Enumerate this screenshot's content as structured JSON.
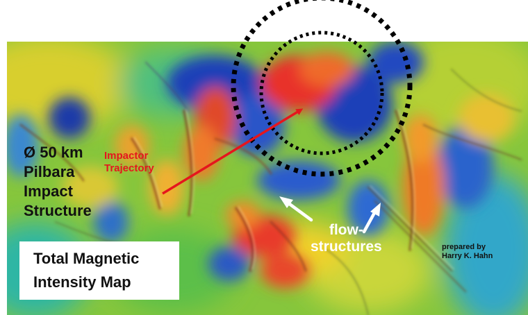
{
  "map": {
    "structure_label": [
      "Ø 50 km",
      "Pilbara",
      "Impact",
      "Structure"
    ],
    "trajectory_label": [
      "Impactor",
      "Trajectory"
    ],
    "flow_label": [
      "flow-",
      "structures"
    ],
    "credit_label": [
      "prepared by",
      "Harry K. Hahn"
    ],
    "title": [
      "Total Magnetic",
      "Intensity Map"
    ]
  },
  "colors": {
    "high_anomaly": "#e8332a",
    "low_anomaly": "#1f3fb8",
    "mid_field": "#7cc23a",
    "trajectory": "#e5161d",
    "circles": "#000000",
    "flow_arrows": "#ffffff"
  },
  "icons": [
    "trajectory-arrow",
    "flow-arrow",
    "flow-arrow",
    "outer-impact-circle",
    "inner-impact-circle"
  ]
}
